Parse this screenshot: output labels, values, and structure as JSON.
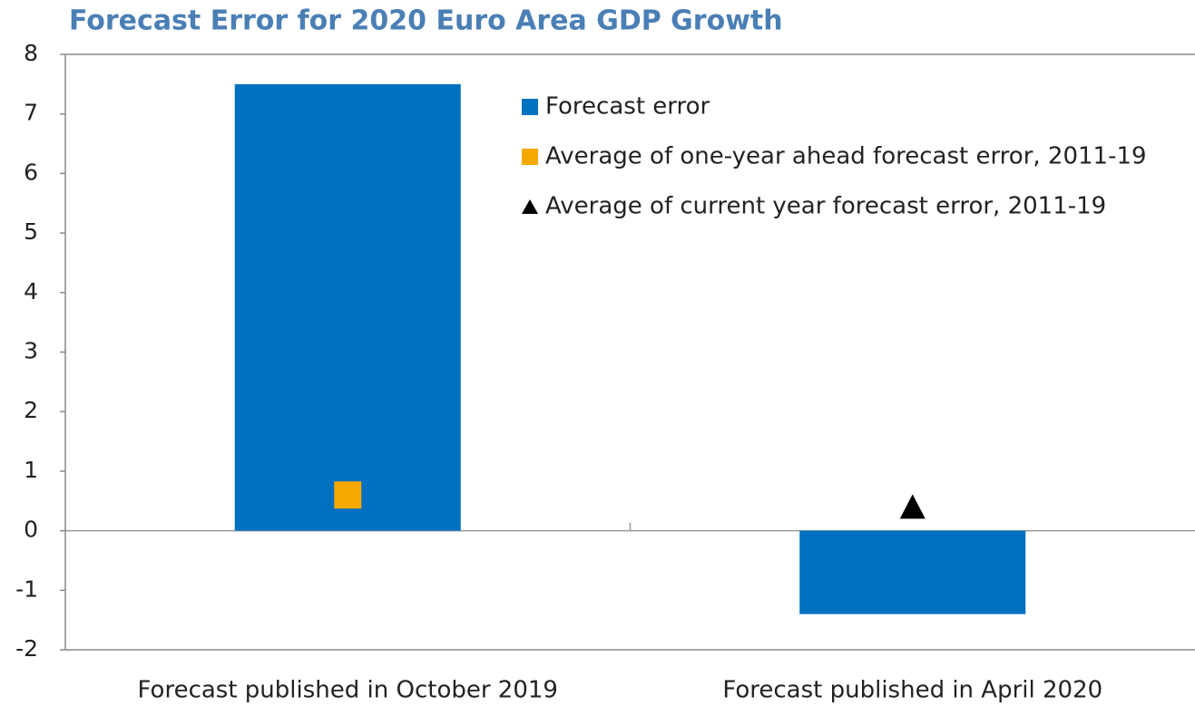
{
  "chart_data": {
    "type": "bar",
    "title": "Forecast Error for 2020 Euro Area GDP Growth",
    "categories": [
      "Forecast published in October 2019",
      "Forecast published in April 2020"
    ],
    "series": [
      {
        "name": "Forecast error",
        "color": "#0070c0",
        "values": [
          7.5,
          -1.4
        ]
      },
      {
        "name": "Average of one-year ahead forecast error, 2011-19",
        "color": "#f5a800",
        "marker": "square",
        "values": [
          0.6,
          null
        ]
      },
      {
        "name": "Average of current year forecast error, 2011-19",
        "color": "#000000",
        "marker": "triangle",
        "values": [
          null,
          0.4
        ]
      }
    ],
    "ylim": [
      -2,
      8
    ],
    "yticks": [
      -2,
      -1,
      0,
      1,
      2,
      3,
      4,
      5,
      6,
      7,
      8
    ],
    "grid": false,
    "legend": "top-right"
  }
}
